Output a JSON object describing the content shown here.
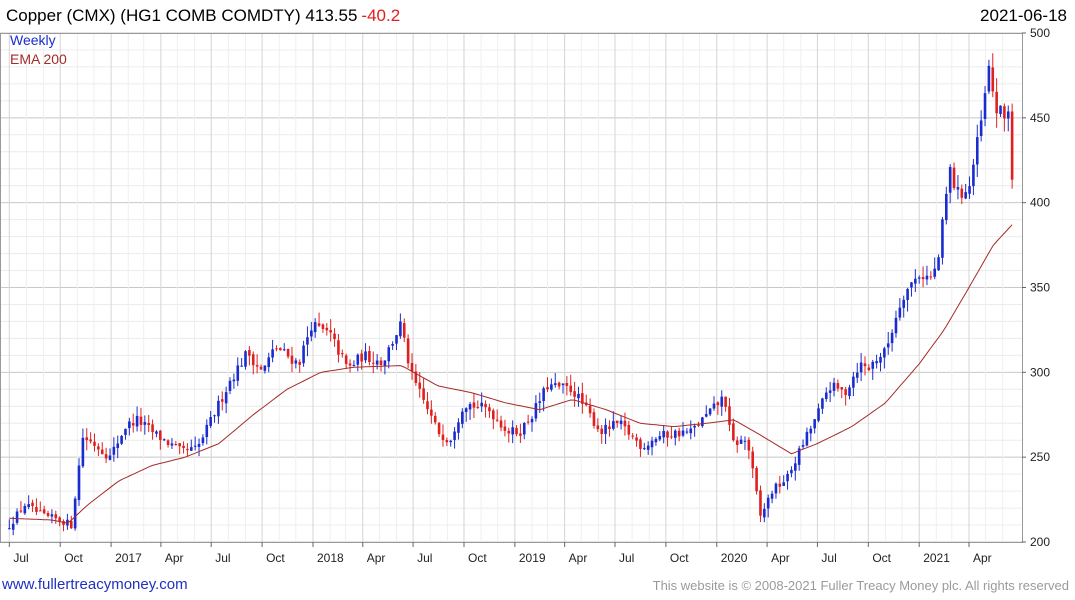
{
  "header": {
    "title": "Copper (CMX) (HG1 COMB COMDTY)",
    "price": "413.55",
    "change": "-40.2",
    "date": "2021-06-18"
  },
  "footer": {
    "left": "www.fullertreacymoney.com",
    "right": "This website is © 2008-2021 Fuller Treacy Money plc. All rights reserved"
  },
  "chart_data": {
    "type": "candlestick",
    "interval_label": "Weekly",
    "series_label": "EMA 200",
    "ylim": [
      200,
      500
    ],
    "y_ticks": [
      200,
      250,
      300,
      350,
      400,
      450,
      500
    ],
    "x_ticks": [
      "Jul",
      "Oct",
      "2017",
      "Apr",
      "Jul",
      "Oct",
      "2018",
      "Apr",
      "Jul",
      "Oct",
      "2019",
      "Apr",
      "Jul",
      "Oct",
      "2020",
      "Apr",
      "Jul",
      "Oct",
      "2021",
      "Apr"
    ],
    "grid": true,
    "colors": {
      "up": "#1a2ccf",
      "down": "#e0201e",
      "ema": "#a52a2a",
      "grid": "#dcdcdc"
    },
    "close_anchors": [
      [
        "2016-07-01",
        210
      ],
      [
        "2016-07-29",
        222
      ],
      [
        "2016-09-01",
        215
      ],
      [
        "2016-10-01",
        213
      ],
      [
        "2016-10-21",
        210
      ],
      [
        "2016-11-11",
        262
      ],
      [
        "2016-12-01",
        258
      ],
      [
        "2016-12-30",
        250
      ],
      [
        "2017-01-27",
        268
      ],
      [
        "2017-02-17",
        272
      ],
      [
        "2017-03-20",
        264
      ],
      [
        "2017-05-08",
        253
      ],
      [
        "2017-06-06",
        255
      ],
      [
        "2017-07-01",
        272
      ],
      [
        "2017-08-04",
        295
      ],
      [
        "2017-09-05",
        312
      ],
      [
        "2017-10-01",
        300
      ],
      [
        "2017-10-25",
        315
      ],
      [
        "2017-12-06",
        305
      ],
      [
        "2017-12-29",
        328
      ],
      [
        "2018-02-01",
        322
      ],
      [
        "2018-03-05",
        302
      ],
      [
        "2018-04-01",
        310
      ],
      [
        "2018-05-07",
        306
      ],
      [
        "2018-06-08",
        328
      ],
      [
        "2018-06-28",
        298
      ],
      [
        "2018-08-15",
        265
      ],
      [
        "2018-09-05",
        260
      ],
      [
        "2018-10-01",
        282
      ],
      [
        "2018-11-15",
        278
      ],
      [
        "2018-12-20",
        265
      ],
      [
        "2019-01-10",
        265
      ],
      [
        "2019-02-01",
        275
      ],
      [
        "2019-03-01",
        292
      ],
      [
        "2019-04-15",
        290
      ],
      [
        "2019-05-10",
        278
      ],
      [
        "2019-06-05",
        265
      ],
      [
        "2019-07-08",
        270
      ],
      [
        "2019-08-20",
        256
      ],
      [
        "2019-09-15",
        262
      ],
      [
        "2019-10-15",
        264
      ],
      [
        "2019-11-15",
        265
      ],
      [
        "2019-12-30",
        280
      ],
      [
        "2020-01-15",
        286
      ],
      [
        "2020-01-28",
        258
      ],
      [
        "2020-02-25",
        260
      ],
      [
        "2020-03-20",
        215
      ],
      [
        "2020-04-10",
        230
      ],
      [
        "2020-05-08",
        238
      ],
      [
        "2020-06-05",
        258
      ],
      [
        "2020-07-01",
        275
      ],
      [
        "2020-07-22",
        292
      ],
      [
        "2020-08-20",
        288
      ],
      [
        "2020-09-15",
        305
      ],
      [
        "2020-10-01",
        302
      ],
      [
        "2020-10-15",
        308
      ],
      [
        "2020-11-01",
        312
      ],
      [
        "2020-12-01",
        345
      ],
      [
        "2021-01-01",
        358
      ],
      [
        "2021-01-25",
        355
      ],
      [
        "2021-02-05",
        368
      ],
      [
        "2021-02-25",
        420
      ],
      [
        "2021-03-10",
        405
      ],
      [
        "2021-04-01",
        408
      ],
      [
        "2021-04-22",
        445
      ],
      [
        "2021-05-07",
        478
      ],
      [
        "2021-05-20",
        455
      ],
      [
        "2021-06-04",
        450
      ],
      [
        "2021-06-11",
        453.75
      ],
      [
        "2021-06-18",
        413.55
      ]
    ],
    "ema_anchors": [
      [
        "2016-07-01",
        214
      ],
      [
        "2016-09-15",
        213
      ],
      [
        "2016-10-15",
        211
      ],
      [
        "2016-11-20",
        222
      ],
      [
        "2017-01-15",
        236
      ],
      [
        "2017-03-15",
        245
      ],
      [
        "2017-05-15",
        250
      ],
      [
        "2017-07-15",
        258
      ],
      [
        "2017-09-15",
        275
      ],
      [
        "2017-11-15",
        290
      ],
      [
        "2018-01-15",
        300
      ],
      [
        "2018-03-15",
        303
      ],
      [
        "2018-06-10",
        304
      ],
      [
        "2018-08-15",
        292
      ],
      [
        "2018-10-15",
        288
      ],
      [
        "2018-12-15",
        282
      ],
      [
        "2019-02-15",
        278
      ],
      [
        "2019-04-15",
        284
      ],
      [
        "2019-06-15",
        278
      ],
      [
        "2019-08-15",
        270
      ],
      [
        "2019-10-15",
        268
      ],
      [
        "2019-12-15",
        270
      ],
      [
        "2020-02-01",
        272
      ],
      [
        "2020-03-15",
        264
      ],
      [
        "2020-05-15",
        252
      ],
      [
        "2020-07-01",
        258
      ],
      [
        "2020-09-01",
        268
      ],
      [
        "2020-11-01",
        282
      ],
      [
        "2021-01-01",
        305
      ],
      [
        "2021-02-15",
        325
      ],
      [
        "2021-04-01",
        350
      ],
      [
        "2021-05-15",
        375
      ],
      [
        "2021-06-18",
        387
      ]
    ]
  }
}
